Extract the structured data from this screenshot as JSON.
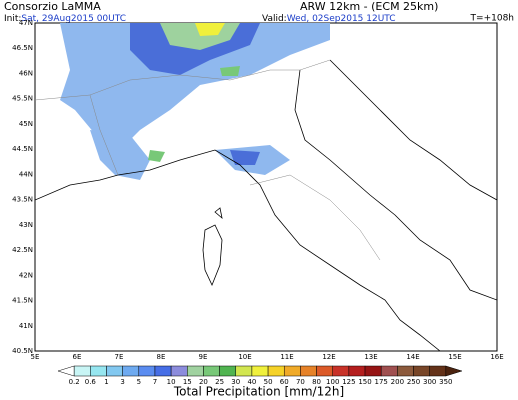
{
  "header": {
    "source": "Consorzio LaMMA",
    "model": "ARW 12km - (ECM 25km)",
    "init_label": "Init:",
    "init_value": "Sat, 29Aug2015 00UTC",
    "valid_label": "Valid:",
    "valid_value": "Wed, 02Sep2015 12UTC",
    "lead": "T=+108h"
  },
  "map": {
    "lon_labels": [
      "5E",
      "6E",
      "7E",
      "8E",
      "9E",
      "10E",
      "11E",
      "12E",
      "13E",
      "14E",
      "15E",
      "16E"
    ],
    "lat_labels": [
      "47N",
      "46.5N",
      "46N",
      "45.5N",
      "45N",
      "44.5N",
      "44N",
      "43.5N",
      "43N",
      "42.5N",
      "42N",
      "41.5N",
      "41N",
      "40.5N"
    ]
  },
  "colorbar": {
    "title": "Total Precipitation [mm/12h]",
    "labels": [
      "0.2",
      "0.6",
      "1",
      "3",
      "5",
      "7",
      "10",
      "15",
      "20",
      "25",
      "30",
      "40",
      "50",
      "60",
      "70",
      "80",
      "100",
      "125",
      "150",
      "175",
      "200",
      "250",
      "300",
      "350"
    ],
    "colors": [
      "#ffffff",
      "#c8f5f5",
      "#96e6f0",
      "#82c8f0",
      "#6eaaf0",
      "#5a8cf0",
      "#466ee6",
      "#8c8cdc",
      "#a0d2a0",
      "#78c878",
      "#50b450",
      "#d2e650",
      "#f0f03c",
      "#f5d228",
      "#f0aa28",
      "#e68228",
      "#dc5a28",
      "#c83228",
      "#b41e1e",
      "#961414",
      "#a05050",
      "#8c5a3c",
      "#784628",
      "#643219",
      "#4b230f"
    ]
  }
}
